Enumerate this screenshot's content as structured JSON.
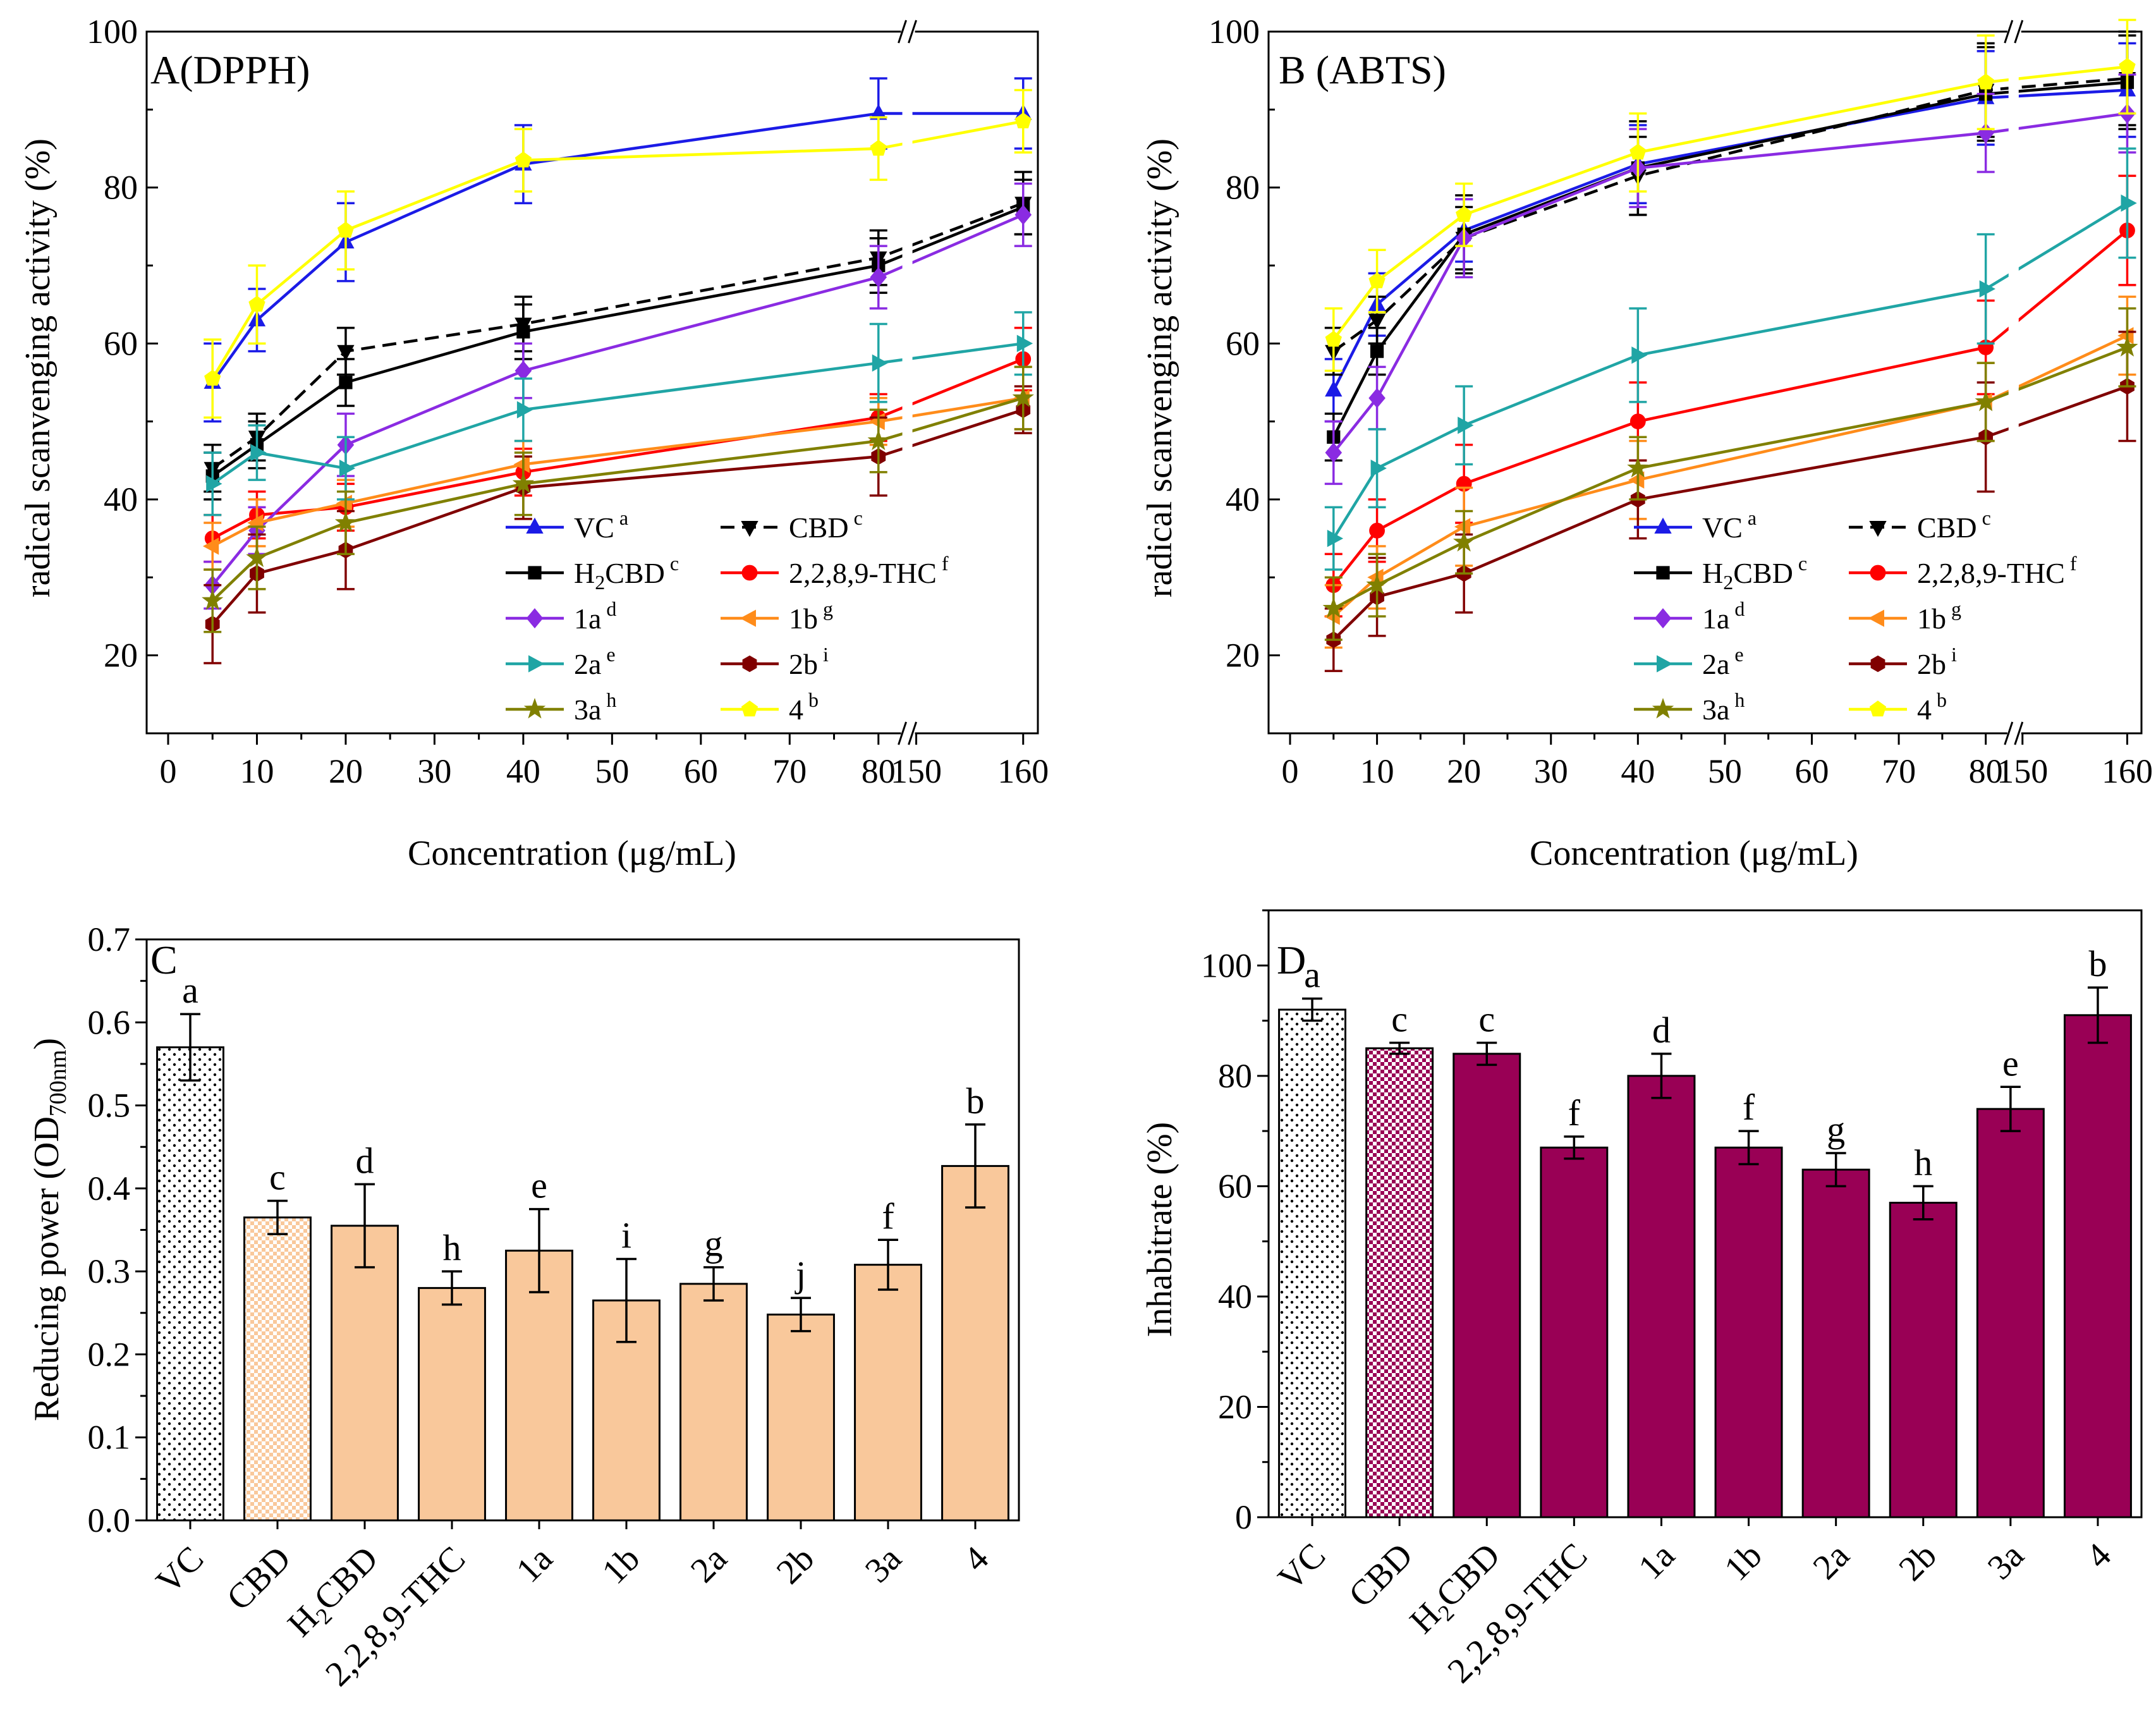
{
  "chart_data": [
    {
      "panel": "A",
      "type": "line",
      "title": "A(DPPH)",
      "xlabel": "Concentration (μg/mL)",
      "ylabel": "radical scanvenging activity (%)",
      "ylim": [
        10,
        100
      ],
      "yticks": [
        "20",
        "40",
        "60",
        "80",
        "100"
      ],
      "xtick_labels": [
        "0",
        "10",
        "20",
        "30",
        "40",
        "50",
        "60",
        "70",
        "80",
        "150",
        "160"
      ],
      "x_break": "//",
      "x": [
        5,
        10,
        20,
        40,
        80,
        160
      ],
      "series": [
        {
          "name": "VC",
          "sup": "a",
          "color": "#1b1be6",
          "marker": "triangle-up",
          "dash": false,
          "values": [
            55,
            63,
            73,
            83,
            89.5,
            89.5
          ],
          "err": [
            5,
            4,
            5,
            5,
            4.5,
            4.5
          ]
        },
        {
          "name": "CBD",
          "sup": "c",
          "color": "#000000",
          "marker": "triangle-down",
          "dash": true,
          "values": [
            44,
            48,
            59,
            62.5,
            71,
            78
          ],
          "err": [
            3,
            3,
            3,
            3.5,
            3.5,
            4
          ]
        },
        {
          "name": "H2CBD",
          "sup": "c",
          "color": "#000000",
          "marker": "square",
          "dash": false,
          "values": [
            43,
            47,
            55,
            61.5,
            70,
            77.5
          ],
          "err": [
            3,
            3,
            3,
            3.5,
            3.5,
            3.5
          ]
        },
        {
          "name": "2,2,8,9-THC",
          "sup": "f",
          "color": "#ff0000",
          "marker": "circle",
          "dash": false,
          "values": [
            35,
            38,
            39,
            43.5,
            50.5,
            58
          ],
          "err": [
            3,
            3,
            3,
            3,
            3,
            4
          ]
        },
        {
          "name": "1a",
          "sup": "d",
          "color": "#8a2be2",
          "marker": "diamond",
          "dash": false,
          "values": [
            29,
            36,
            47,
            56.5,
            68.5,
            76.5
          ],
          "err": [
            3,
            3,
            4,
            3.5,
            4,
            4
          ]
        },
        {
          "name": "1b",
          "sup": "g",
          "color": "#ff8c1a",
          "marker": "triangle-left",
          "dash": false,
          "values": [
            34,
            37,
            39.5,
            44.5,
            50,
            53
          ],
          "err": [
            3,
            3,
            3,
            3,
            3,
            4
          ]
        },
        {
          "name": "2a",
          "sup": "e",
          "color": "#20a5a5",
          "marker": "triangle-right",
          "dash": false,
          "values": [
            42,
            46,
            44,
            51.5,
            57.5,
            60
          ],
          "err": [
            4,
            3.5,
            4,
            4,
            5,
            4
          ]
        },
        {
          "name": "2b",
          "sup": "i",
          "color": "#800000",
          "marker": "hexagon",
          "dash": false,
          "values": [
            24,
            30.5,
            33.5,
            41.5,
            45.5,
            51.5
          ],
          "err": [
            5,
            5,
            5,
            4,
            5,
            3
          ]
        },
        {
          "name": "3a",
          "sup": "h",
          "color": "#808000",
          "marker": "star",
          "dash": false,
          "values": [
            27,
            32.5,
            37,
            42,
            47.5,
            53
          ],
          "err": [
            4,
            4,
            4,
            4,
            4,
            4
          ]
        },
        {
          "name": "4",
          "sup": "b",
          "color": "#ffff00",
          "marker": "pentagon",
          "dash": false,
          "values": [
            55.5,
            65,
            74.5,
            83.5,
            85,
            88.5
          ],
          "err": [
            5,
            5,
            5,
            4,
            4,
            4
          ]
        }
      ]
    },
    {
      "panel": "B",
      "type": "line",
      "title": "B (ABTS)",
      "xlabel": "Concentration (μg/mL)",
      "ylabel": "radical scanvenging activity (%)",
      "ylim": [
        10,
        100
      ],
      "yticks": [
        "20",
        "40",
        "60",
        "80",
        "100"
      ],
      "xtick_labels": [
        "0",
        "10",
        "20",
        "30",
        "40",
        "50",
        "60",
        "70",
        "80",
        "150",
        "160"
      ],
      "x_break": "//",
      "x": [
        5,
        10,
        20,
        40,
        80,
        160
      ],
      "series": [
        {
          "name": "VC",
          "sup": "a",
          "color": "#1b1be6",
          "marker": "triangle-up",
          "dash": false,
          "values": [
            54,
            65,
            74.5,
            83,
            91.5,
            92.5
          ],
          "err": [
            4,
            4,
            4,
            5,
            6,
            6
          ]
        },
        {
          "name": "CBD",
          "sup": "c",
          "color": "#000000",
          "marker": "triangle-down",
          "dash": true,
          "values": [
            59,
            63,
            73.5,
            81.5,
            92.5,
            94
          ],
          "err": [
            3,
            3,
            4,
            5,
            6,
            6
          ]
        },
        {
          "name": "H2CBD",
          "sup": "c",
          "color": "#000000",
          "marker": "square",
          "dash": false,
          "values": [
            48,
            59,
            74,
            82.5,
            92,
            93.5
          ],
          "err": [
            3,
            3,
            5,
            6,
            6,
            6
          ]
        },
        {
          "name": "2,2,8,9-THC",
          "sup": "f",
          "color": "#ff0000",
          "marker": "circle",
          "dash": false,
          "values": [
            29,
            36,
            42,
            50,
            59.5,
            74.5
          ],
          "err": [
            4,
            4,
            5,
            5,
            6,
            7
          ]
        },
        {
          "name": "1a",
          "sup": "d",
          "color": "#8a2be2",
          "marker": "diamond",
          "dash": false,
          "values": [
            46,
            53,
            73.5,
            82.5,
            87,
            89.5
          ],
          "err": [
            4,
            4,
            5,
            5,
            5,
            5
          ]
        },
        {
          "name": "1b",
          "sup": "g",
          "color": "#ff8c1a",
          "marker": "triangle-left",
          "dash": false,
          "values": [
            25,
            30,
            36.5,
            42.5,
            52.5,
            61
          ],
          "err": [
            4,
            4,
            5,
            5,
            5,
            5
          ]
        },
        {
          "name": "2a",
          "sup": "e",
          "color": "#20a5a5",
          "marker": "triangle-right",
          "dash": false,
          "values": [
            35,
            44,
            49.5,
            58.5,
            67,
            78
          ],
          "err": [
            4,
            5,
            5,
            6,
            7,
            7
          ]
        },
        {
          "name": "2b",
          "sup": "i",
          "color": "#800000",
          "marker": "hexagon",
          "dash": false,
          "values": [
            22,
            27.5,
            30.5,
            40,
            48,
            54.5
          ],
          "err": [
            4,
            5,
            5,
            5,
            7,
            7
          ]
        },
        {
          "name": "3a",
          "sup": "h",
          "color": "#808000",
          "marker": "star",
          "dash": false,
          "values": [
            26,
            29,
            34.5,
            44,
            52.5,
            59.5
          ],
          "err": [
            4,
            4,
            4,
            4,
            5,
            5
          ]
        },
        {
          "name": "4",
          "sup": "b",
          "color": "#ffff00",
          "marker": "pentagon",
          "dash": false,
          "values": [
            60.5,
            68,
            76.5,
            84.5,
            93.5,
            95.5
          ],
          "err": [
            4,
            4,
            4,
            5,
            6,
            6
          ]
        }
      ]
    },
    {
      "panel": "C",
      "type": "bar",
      "title": "C",
      "xlabel": "",
      "ylabel": "Reducing power (OD",
      "ylabel_sub": "700nm",
      "ylabel_end": ")",
      "ylim": [
        0,
        0.7
      ],
      "yticks": [
        "0.0",
        "0.1",
        "0.2",
        "0.3",
        "0.4",
        "0.5",
        "0.6",
        "0.7"
      ],
      "categories": [
        "VC",
        "CBD",
        "H2CBD",
        "2,2,8,9-THC",
        "1a",
        "1b",
        "2a",
        "2b",
        "3a",
        "4"
      ],
      "values": [
        0.57,
        0.365,
        0.355,
        0.28,
        0.325,
        0.265,
        0.285,
        0.248,
        0.308,
        0.427
      ],
      "err": [
        0.04,
        0.02,
        0.05,
        0.02,
        0.05,
        0.05,
        0.02,
        0.02,
        0.03,
        0.05
      ],
      "letters": [
        "a",
        "c",
        "d",
        "h",
        "e",
        "i",
        "g",
        "j",
        "f",
        "b"
      ],
      "bar_color": "#f9c89b",
      "patterns": [
        "dots",
        "checker",
        "solid",
        "solid",
        "solid",
        "solid",
        "solid",
        "solid",
        "solid",
        "solid"
      ]
    },
    {
      "panel": "D",
      "type": "bar",
      "title": "D",
      "xlabel": "",
      "ylabel": "Inhabitrate (%)",
      "ylim": [
        0,
        110
      ],
      "yticks": [
        "0",
        "20",
        "40",
        "60",
        "80",
        "100"
      ],
      "categories": [
        "VC",
        "CBD",
        "H2CBD",
        "2,2,8,9-THC",
        "1a",
        "1b",
        "2a",
        "2b",
        "3a",
        "4"
      ],
      "values": [
        92,
        85,
        84,
        67,
        80,
        67,
        63,
        57,
        74,
        91
      ],
      "err": [
        2,
        1,
        2,
        2,
        4,
        3,
        3,
        3,
        4,
        5
      ],
      "letters": [
        "a",
        "c",
        "c",
        "f",
        "d",
        "f",
        "g",
        "h",
        "e",
        "b"
      ],
      "bar_color": "#990055",
      "patterns": [
        "dots",
        "checker",
        "solid",
        "solid",
        "solid",
        "solid",
        "solid",
        "solid",
        "solid",
        "solid"
      ]
    }
  ]
}
